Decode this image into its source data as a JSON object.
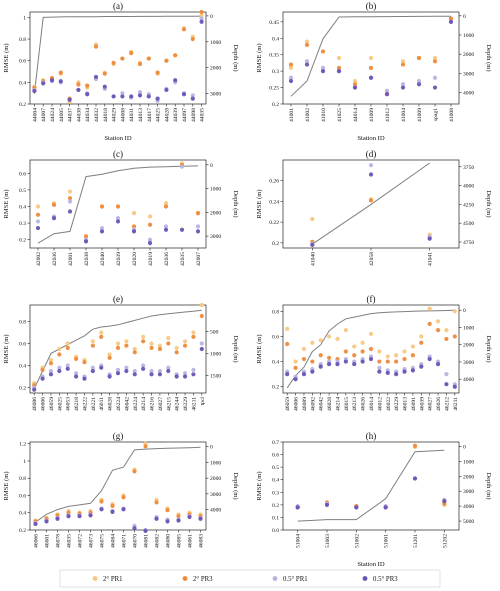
{
  "legend": [
    {
      "label": "2° PR1",
      "color": "#f8c77e"
    },
    {
      "label": "2° PR3",
      "color": "#ed8a3a"
    },
    {
      "label": "0.5° PR1",
      "color": "#b7b4e3"
    },
    {
      "label": "0.5° PR3",
      "color": "#6a52b5"
    }
  ],
  "depth_line_color": "#7f7f7f",
  "chart_data": [
    {
      "type": "scatter",
      "title": "(a)",
      "xlabel": "Station ID",
      "ylabel": "RMSE (m)",
      "y2label": "Depth (m)",
      "ylim": [
        0.2,
        1.05
      ],
      "yticks": [
        0.2,
        0.4,
        0.6,
        0.8,
        1.0
      ],
      "y2lim": [
        -3400,
        150
      ],
      "y2ticks": [
        0,
        -1000,
        -2000,
        -3000
      ],
      "y2ticklabels": [
        "0",
        "1000",
        "2000",
        "3000"
      ],
      "categories": [
        "44004",
        "44007",
        "44024",
        "44005",
        "44037",
        "44038",
        "44034",
        "44032",
        "44018",
        "44029",
        "44008",
        "44031",
        "44013",
        "44017",
        "44025",
        "44028",
        "44039",
        "44097",
        "44098",
        "44035"
      ],
      "series": [
        {
          "name": "2° PR1",
          "values": [
            0.36,
            0.42,
            0.43,
            0.48,
            0.22,
            0.4,
            0.35,
            0.75,
            0.49,
            0.57,
            0.62,
            0.68,
            0.58,
            0.62,
            0.48,
            0.6,
            0.65,
            0.9,
            0.82,
            1.02
          ]
        },
        {
          "name": "2° PR3",
          "values": [
            0.35,
            0.41,
            0.44,
            0.49,
            0.25,
            0.38,
            0.37,
            0.73,
            0.48,
            0.58,
            0.62,
            0.67,
            0.57,
            0.62,
            0.49,
            0.6,
            0.65,
            0.89,
            0.8,
            1.05
          ]
        },
        {
          "name": "0.5° PR1",
          "values": [
            0.33,
            0.4,
            0.41,
            0.4,
            0.24,
            0.33,
            0.3,
            0.43,
            0.34,
            0.27,
            0.3,
            0.26,
            0.31,
            0.29,
            0.23,
            0.34,
            0.4,
            0.3,
            0.28,
            0.99
          ]
        },
        {
          "name": "0.5° PR3",
          "values": [
            0.32,
            0.39,
            0.42,
            0.41,
            0.24,
            0.33,
            0.29,
            0.45,
            0.36,
            0.27,
            0.27,
            0.27,
            0.28,
            0.27,
            0.25,
            0.33,
            0.42,
            0.29,
            0.25,
            0.96
          ]
        }
      ],
      "depth": [
        -3000,
        -60,
        -45,
        -40,
        -35,
        -30,
        -30,
        -30,
        -25,
        -25,
        -25,
        -25,
        -20,
        -20,
        -20,
        -15,
        -15,
        -15,
        -15,
        -10
      ]
    },
    {
      "type": "scatter",
      "title": "(b)",
      "xlabel": "Station ID",
      "ylabel": "RMSE (m)",
      "y2label": "Depth (m)",
      "ylim": [
        0.2,
        0.48
      ],
      "yticks": [
        0.2,
        0.25,
        0.3,
        0.35,
        0.4,
        0.45
      ],
      "y2lim": [
        -4600,
        200
      ],
      "y2ticks": [
        0,
        -1000,
        -2000,
        -3000,
        -4000
      ],
      "y2ticklabels": [
        "0",
        "1000",
        "2000",
        "3000",
        "4000"
      ],
      "categories": [
        "41001",
        "41002",
        "41010",
        "41025",
        "44014",
        "41009",
        "41012",
        "41004",
        "41009",
        "spag1",
        "41008"
      ],
      "series": [
        {
          "name": "2° PR1",
          "values": [
            0.31,
            0.39,
            0.36,
            0.34,
            0.27,
            0.34,
            0.24,
            0.33,
            0.34,
            0.34,
            0.46
          ]
        },
        {
          "name": "2° PR3",
          "values": [
            0.32,
            0.38,
            0.36,
            0.31,
            0.26,
            0.31,
            0.23,
            0.32,
            0.34,
            0.33,
            0.46
          ]
        },
        {
          "name": "0.5° PR1",
          "values": [
            0.28,
            0.33,
            0.31,
            0.3,
            0.25,
            0.28,
            0.24,
            0.26,
            0.27,
            0.28,
            0.45
          ]
        },
        {
          "name": "0.5° PR3",
          "values": [
            0.27,
            0.32,
            0.3,
            0.3,
            0.25,
            0.28,
            0.23,
            0.25,
            0.26,
            0.25,
            0.45
          ]
        }
      ],
      "depth": [
        -4200,
        -3400,
        -1200,
        -60,
        -50,
        -45,
        -40,
        -35,
        -30,
        -25,
        -20
      ]
    },
    {
      "type": "scatter",
      "title": "(c)",
      "xlabel": "",
      "ylabel": "RMSE (m)",
      "y2label": "Depth (m)",
      "ylim": [
        0.15,
        0.68
      ],
      "yticks": [
        0.2,
        0.3,
        0.4,
        0.5,
        0.6
      ],
      "y2lim": [
        -3500,
        200
      ],
      "y2ticks": [
        0,
        -1000,
        -2000,
        -3000
      ],
      "y2ticklabels": [
        "0",
        "1000",
        "2000",
        "3000"
      ],
      "categories": [
        "42002",
        "42036",
        "42001",
        "42038",
        "42040",
        "42039",
        "42020",
        "42019",
        "42036",
        "42035",
        "42007"
      ],
      "series": [
        {
          "name": "2° PR1",
          "values": [
            0.4,
            0.42,
            0.49,
            0.22,
            0.4,
            0.4,
            0.36,
            0.34,
            0.42,
            0.66,
            0.36
          ]
        },
        {
          "name": "2° PR3",
          "values": [
            0.35,
            0.41,
            0.45,
            0.22,
            0.4,
            0.4,
            0.28,
            0.29,
            0.4,
            0.65,
            0.36
          ]
        },
        {
          "name": "0.5° PR1",
          "values": [
            0.31,
            0.34,
            0.43,
            0.2,
            0.27,
            0.33,
            0.26,
            0.2,
            0.28,
            0.64,
            0.28
          ]
        },
        {
          "name": "0.5° PR3",
          "values": [
            0.27,
            0.33,
            0.37,
            0.19,
            0.25,
            0.31,
            0.25,
            0.18,
            0.26,
            0.26,
            0.25
          ]
        }
      ],
      "depth": [
        -3300,
        -2900,
        -2800,
        -500,
        -400,
        -250,
        -150,
        -100,
        -80,
        -60,
        -50
      ]
    },
    {
      "type": "scatter",
      "title": "(d)",
      "xlabel": "",
      "ylabel": "RMSE (m)",
      "y2label": "Depth (m)",
      "ylim": [
        0.195,
        0.28
      ],
      "yticks": [
        0.2,
        0.22,
        0.24,
        0.26
      ],
      "y2lim": [
        -4830,
        -3660
      ],
      "y2ticks": [
        -3750,
        -4000,
        -4250,
        -4500,
        -4750
      ],
      "y2ticklabels": [
        "3750",
        "4000",
        "4250",
        "4500",
        "4750"
      ],
      "categories": [
        "41040",
        "42058",
        "41041"
      ],
      "series": [
        {
          "name": "2° PR1",
          "values": [
            0.223,
            0.242,
            0.208
          ]
        },
        {
          "name": "2° PR3",
          "values": [
            0.201,
            0.241,
            0.205
          ]
        },
        {
          "name": "0.5° PR1",
          "values": [
            0.199,
            0.275,
            0.206
          ]
        },
        {
          "name": "0.5° PR3",
          "values": [
            0.198,
            0.266,
            0.204
          ]
        }
      ],
      "depth": [
        -4780,
        -4250,
        -3700
      ]
    },
    {
      "type": "scatter",
      "title": "(e)",
      "xlabel": "",
      "ylabel": "RMSE (m)",
      "y2label": "Depth (m)",
      "ylim": [
        0.15,
        0.95
      ],
      "yticks": [
        0.2,
        0.4,
        0.6,
        0.8
      ],
      "y2lim": [
        -1900,
        100
      ],
      "y2ticks": [
        -500,
        -1000,
        -1500
      ],
      "y2ticklabels": [
        "500",
        "1000",
        "1500"
      ],
      "categories": [
        "46086",
        "46006",
        "46059",
        "46025",
        "46053",
        "46218",
        "46222",
        "46221",
        "46011",
        "46028",
        "46224",
        "46042",
        "46224",
        "46214",
        "46216",
        "46027",
        "46215",
        "46244",
        "46229",
        "46211",
        "tpcl"
      ],
      "series": [
        {
          "name": "2° PR1",
          "values": [
            0.24,
            0.38,
            0.45,
            0.55,
            0.6,
            0.48,
            0.45,
            0.62,
            0.7,
            0.5,
            0.6,
            0.62,
            0.55,
            0.66,
            0.6,
            0.58,
            0.65,
            0.56,
            0.62,
            0.7,
            0.95
          ]
        },
        {
          "name": "2° PR3",
          "values": [
            0.22,
            0.36,
            0.42,
            0.5,
            0.56,
            0.46,
            0.43,
            0.58,
            0.66,
            0.47,
            0.56,
            0.58,
            0.52,
            0.62,
            0.56,
            0.55,
            0.6,
            0.52,
            0.58,
            0.66,
            0.85
          ]
        },
        {
          "name": "0.5° PR1",
          "values": [
            0.2,
            0.3,
            0.35,
            0.38,
            0.4,
            0.33,
            0.3,
            0.38,
            0.4,
            0.32,
            0.36,
            0.38,
            0.35,
            0.4,
            0.35,
            0.35,
            0.38,
            0.32,
            0.33,
            0.36,
            0.6
          ]
        },
        {
          "name": "0.5° PR3",
          "values": [
            0.18,
            0.28,
            0.32,
            0.35,
            0.37,
            0.3,
            0.28,
            0.35,
            0.38,
            0.3,
            0.33,
            0.35,
            0.32,
            0.37,
            0.32,
            0.32,
            0.35,
            0.3,
            0.3,
            0.32,
            0.55
          ]
        }
      ],
      "depth": [
        -1800,
        -1400,
        -1000,
        -900,
        -800,
        -700,
        -600,
        -450,
        -400,
        -380,
        -350,
        -300,
        -250,
        -200,
        -150,
        -120,
        -100,
        -80,
        -60,
        -40,
        -20
      ]
    },
    {
      "type": "scatter",
      "title": "(f)",
      "xlabel": "",
      "ylabel": "RMSE (m)",
      "y2label": "Depth (m)",
      "ylim": [
        0.15,
        0.85
      ],
      "yticks": [
        0.2,
        0.4,
        0.6,
        0.8
      ],
      "y2lim": [
        -4800,
        300
      ],
      "y2ticks": [
        0,
        -1000,
        -2000,
        -3000,
        -4000
      ],
      "y2ticklabels": [
        "0",
        "1000",
        "2000",
        "3000",
        "4000"
      ],
      "categories": [
        "46059",
        "46006",
        "46089",
        "46092",
        "46042",
        "46028",
        "46214",
        "46015",
        "46213",
        "46026",
        "46014",
        "46012",
        "46022",
        "46229",
        "46013",
        "46091",
        "46039",
        "46027",
        "46026",
        "46212",
        "46211"
      ],
      "series": [
        {
          "name": "2° PR1",
          "values": [
            0.66,
            0.4,
            0.5,
            0.55,
            0.57,
            0.6,
            0.58,
            0.65,
            0.52,
            0.55,
            0.62,
            0.48,
            0.44,
            0.45,
            0.48,
            0.52,
            0.6,
            0.82,
            0.72,
            0.65,
            0.8
          ]
        },
        {
          "name": "2° PR3",
          "values": [
            0.54,
            0.35,
            0.42,
            0.4,
            0.45,
            0.43,
            0.42,
            0.48,
            0.45,
            0.48,
            0.5,
            0.4,
            0.4,
            0.4,
            0.42,
            0.45,
            0.55,
            0.7,
            0.65,
            0.58,
            0.6
          ]
        },
        {
          "name": "0.5° PR1",
          "values": [
            0.32,
            0.28,
            0.32,
            0.34,
            0.38,
            0.4,
            0.4,
            0.42,
            0.4,
            0.42,
            0.44,
            0.35,
            0.33,
            0.32,
            0.34,
            0.35,
            0.38,
            0.44,
            0.4,
            0.3,
            0.22
          ]
        },
        {
          "name": "0.5° PR3",
          "values": [
            0.3,
            0.26,
            0.3,
            0.32,
            0.36,
            0.38,
            0.38,
            0.4,
            0.38,
            0.4,
            0.42,
            0.32,
            0.31,
            0.3,
            0.32,
            0.33,
            0.36,
            0.42,
            0.38,
            0.22,
            0.2
          ]
        }
      ],
      "depth": [
        -4500,
        -3800,
        -3300,
        -2400,
        -2000,
        -1200,
        -800,
        -500,
        -400,
        -300,
        -200,
        -150,
        -120,
        -100,
        -80,
        -60,
        -50,
        -40,
        -30,
        -20,
        -10
      ]
    },
    {
      "type": "scatter",
      "title": "(g)",
      "xlabel": "",
      "ylabel": "RMSE (m)",
      "y2label": "Depth (m)",
      "ylim": [
        0.2,
        1.22
      ],
      "yticks": [
        0.2,
        0.4,
        0.6,
        0.8,
        1.0,
        1.2
      ],
      "y2lim": [
        -5300,
        300
      ],
      "y2ticks": [
        0,
        -1000,
        -2000,
        -3000,
        -4000
      ],
      "y2ticklabels": [
        "0",
        "1000",
        "2000",
        "3000",
        "4000"
      ],
      "categories": [
        "46066",
        "46001",
        "46078",
        "46035",
        "46072",
        "46073",
        "46075",
        "46084",
        "46071",
        "46070",
        "46081",
        "46082",
        "46080",
        "46085",
        "46061",
        "46083"
      ],
      "series": [
        {
          "name": "2° PR1",
          "values": [
            0.31,
            0.34,
            0.38,
            0.42,
            0.4,
            0.42,
            0.55,
            0.5,
            0.6,
            0.9,
            1.2,
            0.55,
            0.45,
            0.38,
            0.4,
            0.38
          ]
        },
        {
          "name": "2° PR3",
          "values": [
            0.3,
            0.33,
            0.37,
            0.4,
            0.39,
            0.4,
            0.53,
            0.48,
            0.58,
            0.88,
            1.17,
            0.52,
            0.43,
            0.36,
            0.38,
            0.36
          ]
        },
        {
          "name": "0.5° PR1",
          "values": [
            0.28,
            0.31,
            0.34,
            0.37,
            0.37,
            0.38,
            0.45,
            0.42,
            0.45,
            0.25,
            0.2,
            0.35,
            0.32,
            0.32,
            0.36,
            0.34
          ]
        },
        {
          "name": "0.5° PR3",
          "values": [
            0.27,
            0.3,
            0.33,
            0.36,
            0.36,
            0.37,
            0.44,
            0.41,
            0.44,
            0.22,
            0.19,
            0.33,
            0.3,
            0.31,
            0.35,
            0.33
          ]
        }
      ],
      "depth": [
        -4800,
        -4300,
        -4000,
        -3800,
        -3700,
        -3600,
        -2800,
        -1500,
        -1300,
        -200,
        -150,
        -120,
        -100,
        -80,
        -60,
        -40
      ]
    },
    {
      "type": "scatter",
      "title": "(h)",
      "xlabel": "Station ID",
      "ylabel": "RMSE (m)",
      "y2label": "Depth (m)",
      "ylim": [
        0.0,
        0.7
      ],
      "yticks": [
        0.0,
        0.1,
        0.2,
        0.3,
        0.4,
        0.5,
        0.6,
        0.7
      ],
      "y2lim": [
        -5600,
        300
      ],
      "y2ticks": [
        0,
        -1000,
        -2000,
        -3000,
        -4000,
        -5000
      ],
      "y2ticklabels": [
        "0",
        "1000",
        "2000",
        "3000",
        "4000",
        "5000"
      ],
      "categories": [
        "51004",
        "51003",
        "51002",
        "51001",
        "51201",
        "51202"
      ],
      "series": [
        {
          "name": "2° PR1",
          "values": [
            0.18,
            0.21,
            0.19,
            0.18,
            0.66,
            0.2
          ]
        },
        {
          "name": "2° PR3",
          "values": [
            0.18,
            0.22,
            0.19,
            0.18,
            0.67,
            0.21
          ]
        },
        {
          "name": "0.5° PR1",
          "values": [
            0.19,
            0.21,
            0.18,
            0.19,
            0.41,
            0.24
          ]
        },
        {
          "name": "0.5° PR3",
          "values": [
            0.18,
            0.2,
            0.18,
            0.18,
            0.41,
            0.23
          ]
        }
      ],
      "depth": [
        -5000,
        -4900,
        -4900,
        -3500,
        -350,
        -250
      ]
    }
  ]
}
